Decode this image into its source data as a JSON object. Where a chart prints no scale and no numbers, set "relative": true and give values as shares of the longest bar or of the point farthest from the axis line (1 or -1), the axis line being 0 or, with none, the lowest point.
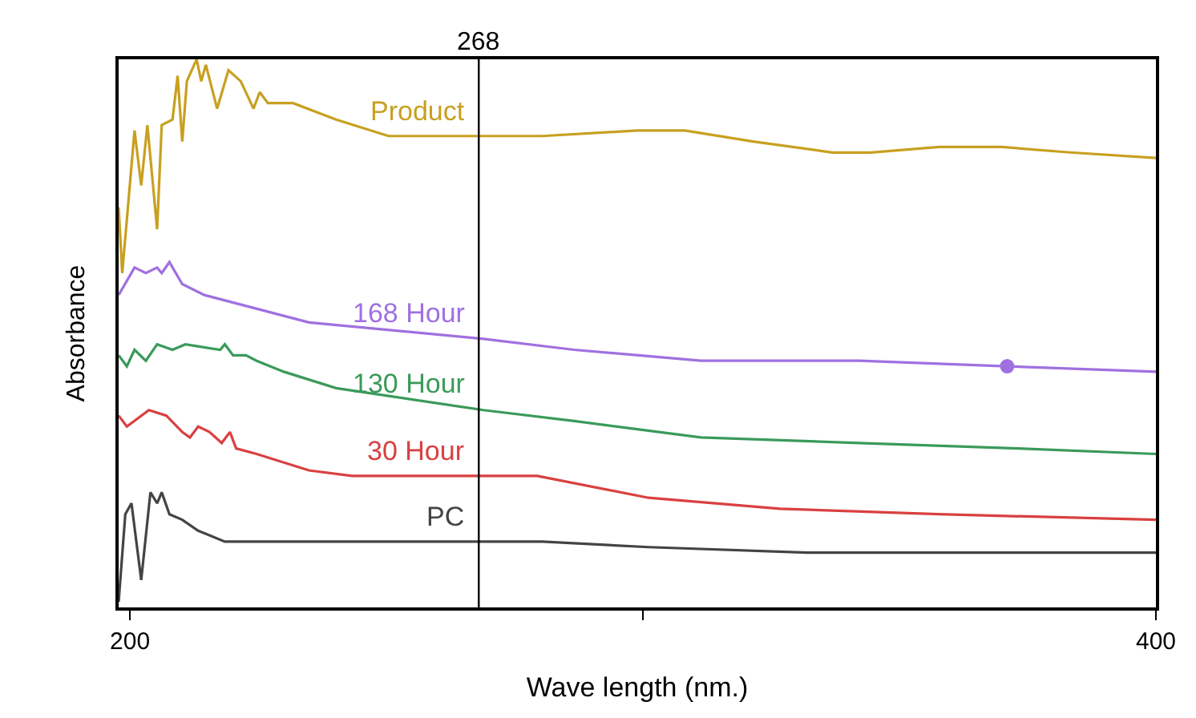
{
  "chart_data": {
    "type": "line",
    "relative": true,
    "xlabel": "Wave length (nm.)",
    "ylabel": "Absorbance",
    "xlim": [
      197.8,
      400
    ],
    "xticks": [
      200,
      {
        "value": 300,
        "label": null
      },
      400
    ],
    "legend": false,
    "marker": "none",
    "line_style": "solid",
    "ref_lines": [
      {
        "axis": "x",
        "value": 268,
        "label": "268",
        "color": "#000000"
      }
    ],
    "series": [
      {
        "name": "Product",
        "color": "#c8a020",
        "x": [
          197.8,
          198.5,
          200.9,
          202.2,
          203.4,
          205.3,
          206.2,
          208.3,
          209.3,
          210.2,
          211.1,
          213.0,
          213.9,
          214.8,
          217.0,
          219.2,
          221.6,
          224.1,
          225.3,
          226.9,
          231.8,
          240.2,
          250.4,
          260.9,
          268.9,
          280.4,
          298.9,
          308.2,
          321.5,
          336.9,
          344.4,
          357.7,
          370.0,
          383.3,
          400.0
        ],
        "values": [
          0.73,
          0.61,
          0.87,
          0.77,
          0.88,
          0.69,
          0.88,
          0.89,
          0.97,
          0.85,
          0.96,
          1.0,
          0.96,
          0.99,
          0.91,
          0.98,
          0.96,
          0.91,
          0.94,
          0.92,
          0.92,
          0.89,
          0.86,
          0.86,
          0.86,
          0.86,
          0.87,
          0.87,
          0.85,
          0.83,
          0.83,
          0.84,
          0.84,
          0.83,
          0.82
        ]
      },
      {
        "name": "168 Hour",
        "color": "#a070e0",
        "x": [
          197.8,
          200.9,
          203.1,
          205.3,
          206.2,
          207.7,
          210.2,
          214.5,
          234.9,
          268.9,
          286.6,
          311.3,
          342.2,
          370.9,
          400.0
        ],
        "values": [
          0.57,
          0.62,
          0.61,
          0.62,
          0.61,
          0.63,
          0.59,
          0.57,
          0.52,
          0.49,
          0.47,
          0.45,
          0.45,
          0.44,
          0.43
        ]
      },
      {
        "name": "130 Hour",
        "color": "#3a9a5a",
        "x": [
          197.8,
          199.4,
          200.9,
          203.1,
          205.3,
          208.3,
          210.8,
          217.6,
          218.5,
          220.1,
          222.6,
          224.7,
          230.0,
          240.2,
          268.9,
          286.6,
          311.3,
          342.2,
          373.1,
          400.0
        ],
        "values": [
          0.46,
          0.44,
          0.47,
          0.45,
          0.48,
          0.47,
          0.48,
          0.47,
          0.48,
          0.46,
          0.46,
          0.45,
          0.43,
          0.4,
          0.36,
          0.34,
          0.31,
          0.3,
          0.29,
          0.28
        ]
      },
      {
        "name": "30 Hour",
        "color": "#d94040",
        "x": [
          197.8,
          199.4,
          203.7,
          207.1,
          210.2,
          211.7,
          213.3,
          215.5,
          217.9,
          219.5,
          220.7,
          224.7,
          234.9,
          243.3,
          255.6,
          268.9,
          279.4,
          301.1,
          326.7,
          357.6,
          400.0
        ],
        "values": [
          0.35,
          0.33,
          0.36,
          0.35,
          0.32,
          0.31,
          0.33,
          0.32,
          0.3,
          0.32,
          0.29,
          0.28,
          0.25,
          0.24,
          0.24,
          0.24,
          0.24,
          0.2,
          0.18,
          0.17,
          0.16
        ]
      },
      {
        "name": "PC",
        "color": "#444444",
        "x": [
          197.8,
          199.1,
          200.3,
          202.2,
          204.0,
          205.3,
          206.2,
          207.7,
          210.2,
          213.3,
          218.5,
          234.9,
          255.6,
          268.9,
          280.4,
          301.1,
          332.0,
          377.1,
          400.0
        ],
        "values": [
          0.01,
          0.17,
          0.19,
          0.05,
          0.21,
          0.19,
          0.21,
          0.17,
          0.16,
          0.14,
          0.12,
          0.12,
          0.12,
          0.12,
          0.12,
          0.11,
          0.1,
          0.1,
          0.1
        ]
      },
      {
        "type": "scatter",
        "color": "#a070e0",
        "marker": "circle",
        "x": [
          371
        ],
        "values": [
          0.44
        ]
      }
    ]
  }
}
